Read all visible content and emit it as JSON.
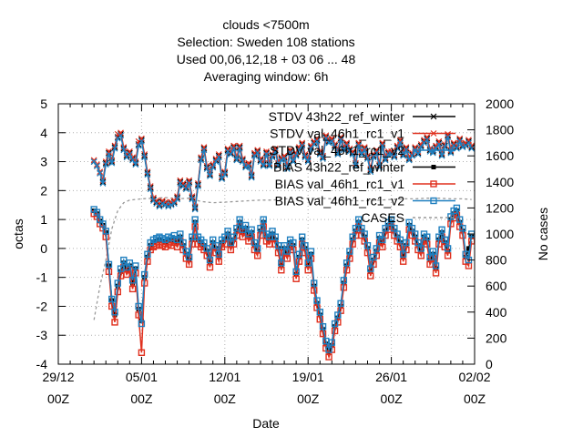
{
  "chart_data": {
    "type": "line",
    "title_lines": [
      "clouds <7500m",
      "Selection: Sweden    108 stations",
      "Used  00,06,12,18  + 03 06 ... 48",
      "Averaging window:  6h"
    ],
    "xlabel": "Date",
    "ylabel": "octas",
    "y2label": "No cases",
    "ylim": [
      -4,
      5
    ],
    "y2lim": [
      0,
      2000
    ],
    "xlim": [
      "2021-12-29 00Z",
      "2022-02-02 00Z"
    ],
    "yticks": [
      "-4",
      "-3",
      "-2",
      "-1",
      "0",
      "1",
      "2",
      "3",
      "4",
      "5"
    ],
    "y2ticks": [
      "0",
      "200",
      "400",
      "600",
      "800",
      "1000",
      "1200",
      "1400",
      "1600",
      "1800",
      "2000"
    ],
    "xticks": [
      {
        "date": "29/12",
        "hour": "00Z"
      },
      {
        "date": "05/01",
        "hour": "00Z"
      },
      {
        "date": "12/01",
        "hour": "00Z"
      },
      {
        "date": "19/01",
        "hour": "00Z"
      },
      {
        "date": "26/01",
        "hour": "00Z"
      },
      {
        "date": "02/02",
        "hour": "00Z"
      }
    ],
    "grid": true,
    "legend_position": "top-right",
    "x_days": [
      3.0,
      3.25,
      3.5,
      3.75,
      4.0,
      4.25,
      4.5,
      4.75,
      5.0,
      5.25,
      5.5,
      5.75,
      6.0,
      6.25,
      6.5,
      6.75,
      7.0,
      7.25,
      7.5,
      7.75,
      8.0,
      8.25,
      8.5,
      8.75,
      9.0,
      9.25,
      9.5,
      9.75,
      10.0,
      10.25,
      10.5,
      10.75,
      11.0,
      11.25,
      11.5,
      11.75,
      12.0,
      12.25,
      12.5,
      12.75,
      13.0,
      13.25,
      13.5,
      13.75,
      14.0,
      14.25,
      14.5,
      14.75,
      15.0,
      15.25,
      15.5,
      15.75,
      16.0,
      16.25,
      16.5,
      16.75,
      17.0,
      17.25,
      17.5,
      17.75,
      18.0,
      18.25,
      18.5,
      18.75,
      19.0,
      19.25,
      19.5,
      19.75,
      20.0,
      20.25,
      20.5,
      20.75,
      21.0,
      21.25,
      21.5,
      21.75,
      22.0,
      22.25,
      22.5,
      22.75,
      23.0,
      23.25,
      23.5,
      23.75,
      24.0,
      24.25,
      24.5,
      24.75,
      25.0,
      25.25,
      25.5,
      25.75,
      26.0,
      26.25,
      26.5,
      26.75,
      27.0,
      27.25,
      27.5,
      27.75,
      28.0,
      28.25,
      28.5,
      28.75,
      29.0,
      29.25,
      29.5,
      29.75,
      30.0,
      30.25,
      30.5,
      30.75,
      31.0,
      31.25,
      31.5,
      31.75,
      32.0,
      32.25,
      32.5,
      32.75,
      33.0,
      33.25,
      33.5,
      33.75,
      34.0,
      34.25,
      34.5,
      34.75
    ],
    "series": [
      {
        "name": "STDV 43h22_ref_winter",
        "axis": "y",
        "color": "#000000",
        "marker": "x",
        "values": [
          3.0,
          2.85,
          2.6,
          2.3,
          2.95,
          3.3,
          3.0,
          3.5,
          3.85,
          3.95,
          3.45,
          3.2,
          3.3,
          3.1,
          2.95,
          3.6,
          3.75,
          3.2,
          2.6,
          2.1,
          1.7,
          1.6,
          1.5,
          1.6,
          1.55,
          1.5,
          1.55,
          1.6,
          1.75,
          2.3,
          2.2,
          2.1,
          2.3,
          1.75,
          1.4,
          2.2,
          3.1,
          3.45,
          2.8,
          2.55,
          2.85,
          3.05,
          3.2,
          2.45,
          2.6,
          3.4,
          3.3,
          3.5,
          3.1,
          3.5,
          3.05,
          2.85,
          2.9,
          2.5,
          3.25,
          3.35,
          3.05,
          2.9,
          3.3,
          2.9,
          3.2,
          3.4,
          2.9,
          3.1,
          3.15,
          2.8,
          3.35,
          3.05,
          3.25,
          3.45,
          3.6,
          3.2,
          3.05,
          3.5,
          3.65,
          3.75,
          3.3,
          3.15,
          3.85,
          3.7,
          3.75,
          3.55,
          3.3,
          3.8,
          3.45,
          3.6,
          3.4,
          3.3,
          2.9,
          3.6,
          3.3,
          3.45,
          3.15,
          2.7,
          3.2,
          3.35,
          2.85,
          3.6,
          3.1,
          3.3,
          3.3,
          3.2,
          3.5,
          3.7,
          3.25,
          3.45,
          3.1,
          3.25,
          3.45,
          3.3,
          3.55,
          3.7,
          3.8,
          3.4,
          3.35,
          3.5,
          3.65,
          3.25,
          3.55,
          3.9,
          3.35,
          3.6,
          3.5,
          3.75,
          3.55,
          3.6,
          3.7,
          3.5
        ]
      },
      {
        "name": "STDV val_46h1_rc1_v1",
        "axis": "y",
        "color": "#e0301e",
        "marker": "x",
        "values": [
          3.05,
          2.9,
          2.65,
          2.35,
          3.0,
          3.35,
          3.05,
          3.55,
          3.95,
          4.0,
          3.5,
          3.25,
          3.35,
          3.15,
          3.0,
          3.7,
          3.8,
          3.25,
          2.65,
          2.15,
          1.75,
          1.65,
          1.55,
          1.65,
          1.6,
          1.55,
          1.6,
          1.65,
          1.8,
          2.35,
          2.25,
          2.15,
          2.35,
          1.8,
          1.45,
          2.25,
          3.15,
          3.5,
          2.85,
          2.6,
          2.9,
          3.1,
          3.25,
          2.5,
          2.65,
          3.45,
          3.35,
          3.55,
          3.15,
          3.55,
          3.1,
          2.9,
          2.95,
          2.55,
          3.3,
          3.4,
          3.1,
          2.95,
          3.35,
          2.95,
          3.25,
          3.45,
          2.95,
          3.15,
          3.2,
          2.85,
          3.4,
          3.1,
          3.3,
          3.5,
          3.65,
          3.25,
          3.1,
          3.55,
          3.7,
          3.8,
          3.35,
          3.2,
          3.9,
          3.75,
          3.8,
          3.6,
          3.35,
          3.85,
          3.5,
          3.65,
          3.45,
          3.35,
          2.95,
          3.65,
          3.35,
          3.5,
          3.2,
          2.75,
          3.25,
          3.4,
          2.9,
          3.65,
          3.15,
          3.35,
          3.35,
          3.25,
          3.55,
          3.75,
          3.3,
          3.5,
          3.15,
          3.3,
          3.5,
          3.35,
          3.6,
          3.75,
          3.85,
          3.45,
          3.4,
          3.55,
          3.7,
          3.3,
          3.6,
          3.95,
          3.4,
          3.65,
          3.55,
          3.8,
          3.6,
          3.65,
          3.75,
          3.55
        ]
      },
      {
        "name": "STDV val_46h1_rc1_v2",
        "axis": "y",
        "color": "#1f7fbf",
        "marker": "x",
        "values": [
          3.0,
          2.85,
          2.6,
          2.25,
          2.9,
          3.25,
          2.95,
          3.45,
          3.8,
          3.9,
          3.4,
          3.15,
          3.25,
          3.05,
          2.9,
          3.55,
          3.7,
          3.15,
          2.55,
          2.05,
          1.65,
          1.55,
          1.45,
          1.55,
          1.5,
          1.45,
          1.5,
          1.55,
          1.7,
          2.25,
          2.15,
          2.05,
          2.25,
          1.7,
          1.35,
          2.15,
          3.05,
          3.4,
          2.75,
          2.5,
          2.8,
          3.0,
          3.15,
          2.4,
          2.55,
          3.35,
          3.25,
          3.45,
          3.05,
          3.45,
          3.0,
          2.8,
          2.85,
          2.45,
          3.2,
          3.3,
          3.0,
          2.85,
          3.25,
          2.85,
          3.15,
          3.35,
          2.85,
          3.05,
          3.1,
          2.75,
          3.3,
          3.0,
          3.2,
          3.4,
          3.55,
          3.15,
          3.0,
          3.45,
          3.6,
          3.7,
          3.25,
          3.1,
          3.8,
          3.65,
          3.7,
          3.5,
          3.25,
          3.75,
          3.4,
          3.55,
          3.35,
          3.25,
          2.85,
          3.55,
          3.25,
          3.4,
          3.1,
          2.65,
          3.15,
          3.3,
          2.8,
          3.55,
          3.05,
          3.25,
          3.25,
          3.15,
          3.45,
          3.65,
          3.2,
          3.4,
          3.05,
          3.2,
          3.4,
          3.25,
          3.5,
          3.65,
          3.75,
          3.35,
          3.3,
          3.45,
          3.6,
          3.2,
          3.5,
          3.85,
          3.3,
          3.55,
          3.45,
          3.7,
          3.5,
          3.55,
          3.65,
          3.45
        ]
      },
      {
        "name": "BIAS 43h22_ref_winter",
        "axis": "y",
        "color": "#000000",
        "marker": "filled-square",
        "values": [
          1.3,
          1.2,
          0.95,
          0.8,
          0.55,
          -0.6,
          -1.8,
          -2.3,
          -1.3,
          -0.8,
          -0.5,
          -0.75,
          -0.6,
          -1.2,
          -0.7,
          -2.1,
          -2.5,
          -1.0,
          -0.3,
          0.1,
          0.2,
          0.25,
          0.3,
          0.25,
          0.2,
          0.3,
          0.25,
          0.35,
          0.2,
          0.4,
          0.1,
          -0.2,
          -0.4,
          0.3,
          0.9,
          0.3,
          0.2,
          0.1,
          -0.1,
          -0.5,
          0.2,
          0.0,
          -0.3,
          0.2,
          0.3,
          0.5,
          0.1,
          0.3,
          0.6,
          0.9,
          0.55,
          0.7,
          0.4,
          0.55,
          0.1,
          -0.1,
          0.6,
          0.9,
          0.4,
          0.3,
          0.5,
          0.3,
          0.0,
          -0.6,
          0.0,
          -0.2,
          0.2,
          0.1,
          -0.9,
          -0.3,
          0.3,
          0.0,
          -0.6,
          -0.2,
          -1.3,
          -1.9,
          -2.3,
          -2.8,
          -3.3,
          -3.6,
          -3.35,
          -2.7,
          -2.4,
          -2.0,
          -1.2,
          -0.6,
          -0.2,
          0.3,
          0.6,
          0.9,
          0.6,
          0.4,
          0.0,
          -0.8,
          -0.4,
          -0.1,
          0.35,
          0.2,
          0.6,
          0.8,
          0.9,
          0.6,
          0.4,
          0.2,
          -0.3,
          0.1,
          0.8,
          0.6,
          0.4,
          0.1,
          -0.1,
          0.4,
          0.3,
          -0.4,
          -0.2,
          -0.7,
          0.3,
          0.55,
          0.2,
          -0.1,
          1.0,
          1.2,
          1.3,
          0.9,
          0.6,
          -0.3,
          0.0,
          0.4
        ]
      },
      {
        "name": "BIAS val_46h1_rc1_v1",
        "axis": "y",
        "color": "#e0301e",
        "marker": "square",
        "values": [
          1.2,
          1.1,
          0.85,
          0.7,
          0.4,
          -0.8,
          -2.0,
          -2.55,
          -1.5,
          -0.95,
          -0.65,
          -0.9,
          -0.75,
          -1.4,
          -0.85,
          -2.3,
          -3.6,
          -1.2,
          -0.45,
          -0.05,
          0.05,
          0.1,
          0.15,
          0.1,
          0.05,
          0.15,
          0.1,
          0.2,
          0.05,
          0.25,
          -0.05,
          -0.35,
          -0.55,
          0.15,
          0.75,
          0.15,
          0.05,
          -0.05,
          -0.25,
          -0.65,
          0.05,
          -0.15,
          -0.45,
          0.05,
          0.15,
          0.35,
          -0.05,
          0.15,
          0.45,
          0.75,
          0.4,
          0.55,
          0.25,
          0.4,
          -0.05,
          -0.25,
          0.45,
          0.75,
          0.25,
          0.15,
          0.35,
          0.15,
          -0.15,
          -0.75,
          -0.15,
          -0.35,
          0.05,
          -0.05,
          -1.05,
          -0.45,
          0.15,
          -0.15,
          -0.75,
          -0.35,
          -1.45,
          -2.05,
          -2.45,
          -2.95,
          -3.45,
          -3.75,
          -3.5,
          -2.85,
          -2.55,
          -2.15,
          -1.35,
          -0.75,
          -0.35,
          0.15,
          0.45,
          0.75,
          0.45,
          0.25,
          -0.15,
          -0.95,
          -0.55,
          -0.25,
          0.2,
          0.05,
          0.45,
          0.65,
          0.75,
          0.45,
          0.25,
          0.05,
          -0.45,
          -0.05,
          0.65,
          0.45,
          0.25,
          -0.05,
          -0.25,
          0.25,
          0.15,
          -0.55,
          -0.35,
          -0.85,
          0.15,
          0.4,
          0.05,
          -0.25,
          0.85,
          1.05,
          1.15,
          0.75,
          0.45,
          -0.45,
          -0.6,
          0.25
        ]
      },
      {
        "name": "BIAS val_46h1_rc1_v2",
        "axis": "y",
        "color": "#1f7fbf",
        "marker": "square",
        "values": [
          1.35,
          1.25,
          1.0,
          0.85,
          0.6,
          -0.55,
          -1.75,
          -2.2,
          -1.2,
          -0.7,
          -0.4,
          -0.65,
          -0.5,
          -1.1,
          -0.6,
          -2.0,
          -2.6,
          -0.9,
          -0.2,
          0.2,
          0.3,
          0.35,
          0.4,
          0.35,
          0.3,
          0.4,
          0.35,
          0.45,
          0.3,
          0.5,
          0.2,
          -0.1,
          -0.3,
          0.4,
          1.0,
          0.4,
          0.3,
          0.2,
          0.0,
          -0.4,
          0.3,
          0.1,
          -0.2,
          0.3,
          0.4,
          0.6,
          0.2,
          0.4,
          0.7,
          1.0,
          0.65,
          0.8,
          0.5,
          0.65,
          0.2,
          0.0,
          0.7,
          1.0,
          0.5,
          0.4,
          0.6,
          0.4,
          0.1,
          -0.5,
          0.1,
          -0.1,
          0.3,
          0.2,
          -0.8,
          -0.2,
          0.4,
          0.1,
          -0.5,
          -0.1,
          -1.2,
          -1.8,
          -2.2,
          -2.7,
          -3.2,
          -3.5,
          -3.25,
          -2.6,
          -2.3,
          -1.9,
          -1.1,
          -0.5,
          -0.1,
          0.4,
          0.7,
          1.0,
          0.7,
          0.5,
          0.1,
          -0.7,
          -0.3,
          0.0,
          0.45,
          0.3,
          0.7,
          0.9,
          1.0,
          0.7,
          0.5,
          0.3,
          -0.2,
          0.2,
          0.9,
          0.7,
          0.5,
          0.2,
          0.0,
          0.5,
          0.4,
          -0.3,
          -0.1,
          -0.6,
          0.4,
          0.65,
          0.3,
          0.0,
          1.1,
          1.3,
          1.4,
          1.0,
          0.7,
          -0.2,
          -0.4,
          0.5
        ]
      },
      {
        "name": "CASES",
        "axis": "y2",
        "color": "#999999",
        "marker": "none",
        "dashed": true,
        "x": [
          3.0,
          3.5,
          4.0,
          4.5,
          5.0,
          5.5,
          6.0,
          7.0,
          8.0,
          9.0,
          10.0,
          11.0,
          12.0,
          13.0,
          14.0,
          15.0,
          16.0,
          17.0,
          18.0,
          19.0,
          20.0,
          21.0,
          22.0,
          23.0,
          24.0,
          25.0,
          26.0,
          27.0,
          28.0,
          29.0,
          30.0,
          31.0,
          32.0,
          33.0,
          34.0,
          34.75
        ],
        "values": [
          340,
          600,
          800,
          1040,
          1180,
          1240,
          1260,
          1270,
          1275,
          1280,
          1270,
          1275,
          1250,
          1240,
          1245,
          1250,
          1255,
          1260,
          1260,
          1270,
          1270,
          1275,
          1275,
          1270,
          1260,
          1255,
          1255,
          1260,
          1265,
          1270,
          1270,
          1275,
          1275,
          1270,
          1270,
          1265
        ]
      }
    ]
  }
}
